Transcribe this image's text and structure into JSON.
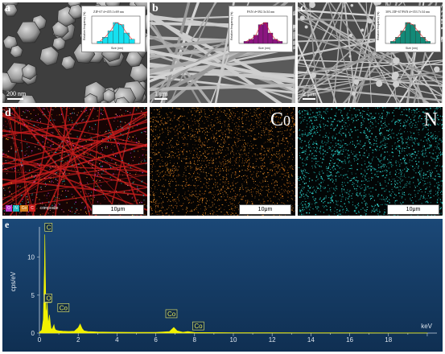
{
  "panels": {
    "a": {
      "label": "a",
      "scale_bar": "200 nm",
      "inset_title": "ZIF-67 d=455.1±69 nm",
      "inset_ylabel": "Relative frequency (%)",
      "inset_xlabel": "Size (nm)"
    },
    "b": {
      "label": "b",
      "scale_bar": "1 μm",
      "inset_title": "PAN d=392.3±34 nm",
      "inset_ylabel": "Relative frequency (%)",
      "inset_xlabel": "Size (nm)"
    },
    "c": {
      "label": "c",
      "scale_bar": "2 μm",
      "inset_title": "30% ZIF-67/PAN d=353.7±34 nm",
      "inset_ylabel": "Relative frequency (%)",
      "inset_xlabel": "Size (nm)"
    },
    "d": {
      "label": "d",
      "scale_bar": "10μm",
      "legend": [
        "O",
        "N",
        "Co",
        "C"
      ],
      "legend_text": "composite"
    },
    "co_map": {
      "element": "C",
      "element_sub": "0",
      "scale_bar": "10μm"
    },
    "n_map": {
      "element": "N",
      "scale_bar": "10μm"
    },
    "e": {
      "label": "e"
    }
  },
  "colors": {
    "hist_a": "#15e0f0",
    "hist_b": "#8b1580",
    "hist_c": "#138a78",
    "eds_bg": "#143a62",
    "spectrum": "#f2f200",
    "co_map": "#d47b18",
    "n_map": "#22c8c0"
  },
  "chart_data": {
    "type": "line",
    "title": "",
    "xlabel": "keV",
    "ylabel": "cps/eV",
    "xlim": [
      0,
      20.5
    ],
    "ylim": [
      0,
      14
    ],
    "x_ticks": [
      "0",
      "2",
      "4",
      "6",
      "8",
      "10",
      "12",
      "14",
      "16",
      "18"
    ],
    "y_ticks": [
      "0",
      "5",
      "10"
    ],
    "series": [
      {
        "x": [
          0.0,
          0.12,
          0.2,
          0.26,
          0.28,
          0.3,
          0.34,
          0.38,
          0.4,
          0.45,
          0.52,
          0.57,
          0.6,
          0.65,
          0.7,
          0.75,
          0.78,
          0.82,
          0.9,
          1.0,
          1.2,
          1.5,
          1.8,
          2.0,
          2.1,
          2.2,
          2.3,
          2.5,
          3.0,
          4.0,
          5.0,
          6.0,
          6.7,
          6.93,
          7.1,
          7.4,
          7.65,
          8.0,
          10.0,
          12.0,
          14.0,
          16.0,
          18.0,
          20.0
        ],
        "y": [
          0.1,
          0.4,
          1.8,
          9.0,
          13.0,
          9.0,
          2.5,
          3.2,
          4.1,
          1.2,
          2.4,
          1.2,
          0.6,
          0.5,
          0.8,
          1.1,
          0.7,
          0.45,
          0.35,
          0.3,
          0.25,
          0.22,
          0.25,
          0.7,
          1.2,
          0.6,
          0.3,
          0.2,
          0.15,
          0.12,
          0.1,
          0.1,
          0.2,
          0.75,
          0.3,
          0.12,
          0.2,
          0.08,
          0.05,
          0.04,
          0.03,
          0.03,
          0.02,
          0.02
        ]
      }
    ],
    "annotations": [
      {
        "text": "C",
        "x": 0.28
      },
      {
        "text": "N",
        "x": 0.39
      },
      {
        "text": "O",
        "x": 0.52
      },
      {
        "text": "Co",
        "x": 0.78
      },
      {
        "text": "Co",
        "x": 6.93
      },
      {
        "text": "Co",
        "x": 7.65
      }
    ],
    "grid": false
  }
}
